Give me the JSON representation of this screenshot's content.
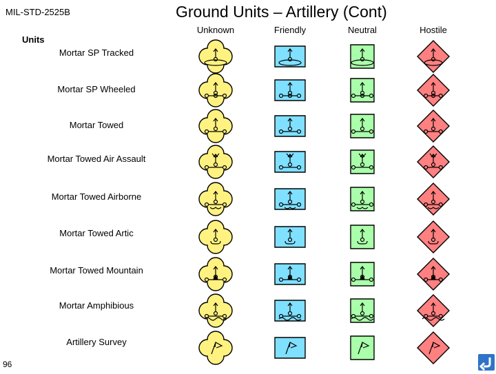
{
  "header": {
    "standard": "MIL-STD-2525B",
    "title": "Ground Units –  Artillery (Cont)"
  },
  "columns": [
    "Unknown",
    "Friendly",
    "Neutral",
    "Hostile"
  ],
  "section_label": "Units",
  "rows": [
    {
      "label": "Mortar SP Tracked",
      "variant": "tracked"
    },
    {
      "label": "Mortar SP Wheeled",
      "variant": "wheeled"
    },
    {
      "label": "Mortar Towed",
      "variant": "towed"
    },
    {
      "label": "Mortar Towed Air Assault",
      "variant": "air-assault"
    },
    {
      "label": "Mortar Towed Airborne",
      "variant": "airborne"
    },
    {
      "label": "Mortar Towed Artic",
      "variant": "artic"
    },
    {
      "label": "Mortar Towed Mountain",
      "variant": "mountain"
    },
    {
      "label": "Mortar Amphibious",
      "variant": "amphibious"
    },
    {
      "label": "Artillery Survey",
      "variant": "survey"
    }
  ],
  "colors": {
    "unknown": "#fff280",
    "friendly": "#80e0ff",
    "neutral": "#aaffaa",
    "hostile": "#ff8080",
    "nav_button": "#2f74c8"
  },
  "footer": {
    "page_number": "96",
    "nav_icon": "return-arrow-icon"
  }
}
